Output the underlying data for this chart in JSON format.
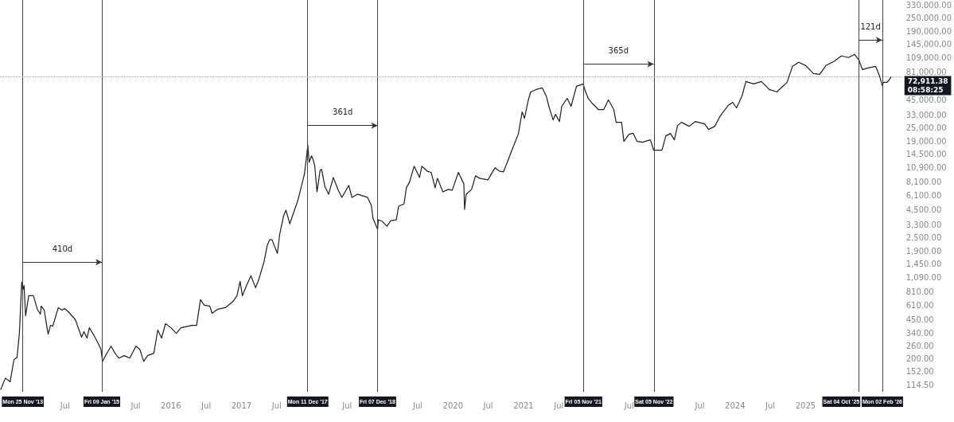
{
  "chart_data": {
    "type": "line",
    "log": "y",
    "marker": "none",
    "line_style": "solid",
    "xlim": [
      2013.576,
      2026.358
    ],
    "xticks": [
      {
        "value": 2014.5,
        "label": "Jul"
      },
      {
        "value": 2015.5,
        "label": "Jul"
      },
      2016,
      {
        "value": 2016.5,
        "label": "Jul"
      },
      2017,
      {
        "value": 2017.5,
        "label": "Jul"
      },
      {
        "value": 2018.5,
        "label": "Jul"
      },
      {
        "value": 2019.5,
        "label": "Jul"
      },
      2020,
      {
        "value": 2020.5,
        "label": "Jul"
      },
      2021,
      {
        "value": 2021.5,
        "label": "Jul"
      },
      {
        "value": 2022.5,
        "label": "Jul"
      },
      {
        "value": 2023.5,
        "label": "Jul"
      },
      2024,
      {
        "value": 2024.5,
        "label": "Jul"
      },
      2025
    ],
    "ylim": [
      100,
      365000
    ],
    "yticks": [
      {
        "value": 330000,
        "label": "330,000.00"
      },
      {
        "value": 250000,
        "label": "250,000.00"
      },
      {
        "value": 190000,
        "label": "190,000.00"
      },
      {
        "value": 145000,
        "label": "145,000.00"
      },
      {
        "value": 109000,
        "label": "109,000.00"
      },
      {
        "value": 81000,
        "label": "81,000.00"
      },
      {
        "value": 45000,
        "label": "45,000.00"
      },
      {
        "value": 33000,
        "label": "33,000.00"
      },
      {
        "value": 25000,
        "label": "25,000.00"
      },
      {
        "value": 19000,
        "label": "19,000.00"
      },
      {
        "value": 14500,
        "label": "14,500.00"
      },
      {
        "value": 10900,
        "label": "10,900.00"
      },
      {
        "value": 8100,
        "label": "8,100.00"
      },
      {
        "value": 6100,
        "label": "6,100.00"
      },
      {
        "value": 4500,
        "label": "4,500.00"
      },
      {
        "value": 3300,
        "label": "3,300.00"
      },
      {
        "value": 2500,
        "label": "2,500.00"
      },
      {
        "value": 1900,
        "label": "1,900.00"
      },
      {
        "value": 1450,
        "label": "1,450.00"
      },
      {
        "value": 1090,
        "label": "1,090.00"
      },
      {
        "value": 810,
        "label": "810.00"
      },
      {
        "value": 610,
        "label": "610.00"
      },
      {
        "value": 450,
        "label": "450.00"
      },
      {
        "value": 340,
        "label": "340.00"
      },
      {
        "value": 260,
        "label": "260.00"
      },
      {
        "value": 200,
        "label": "200.00"
      },
      {
        "value": 152,
        "label": "152.00"
      },
      {
        "value": 114.5,
        "label": "114.50"
      }
    ],
    "series": [
      {
        "color": "#1e1e1e",
        "x": [
          2013.587,
          2013.653,
          2013.719,
          2013.774,
          2013.818,
          2013.851,
          2013.884,
          2013.899,
          2013.917,
          2013.939,
          2013.983,
          2014.05,
          2014.105,
          2014.149,
          2014.16,
          2014.204,
          2014.237,
          2014.259,
          2014.292,
          2014.325,
          2014.402,
          2014.457,
          2014.49,
          2014.545,
          2014.645,
          2014.733,
          2014.766,
          2014.81,
          2014.843,
          2014.898,
          2014.953,
          2015.008,
          2015.03,
          2015.085,
          2015.151,
          2015.207,
          2015.262,
          2015.339,
          2015.416,
          2015.504,
          2015.559,
          2015.614,
          2015.669,
          2015.758,
          2015.813,
          2015.868,
          2015.923,
          2016.0,
          2016.077,
          2016.143,
          2016.298,
          2016.364,
          2016.419,
          2016.474,
          2016.551,
          2016.584,
          2016.661,
          2016.771,
          2016.882,
          2016.937,
          2016.981,
          2017.014,
          2017.069,
          2017.135,
          2017.201,
          2017.245,
          2017.322,
          2017.366,
          2017.399,
          2017.433,
          2017.51,
          2017.543,
          2017.598,
          2017.631,
          2017.686,
          2017.763,
          2017.796,
          2017.84,
          2017.895,
          2017.942,
          2017.961,
          2017.994,
          2018.017,
          2018.039,
          2018.072,
          2018.116,
          2018.138,
          2018.182,
          2018.237,
          2018.303,
          2018.369,
          2018.424,
          2018.523,
          2018.567,
          2018.645,
          2018.788,
          2018.843,
          2018.865,
          2018.931,
          2018.942,
          2018.997,
          2019.063,
          2019.118,
          2019.196,
          2019.229,
          2019.306,
          2019.339,
          2019.383,
          2019.449,
          2019.526,
          2019.559,
          2019.636,
          2019.691,
          2019.747,
          2019.78,
          2019.857,
          2019.934,
          2019.989,
          2020.077,
          2020.154,
          2020.165,
          2020.187,
          2020.264,
          2020.32,
          2020.375,
          2020.496,
          2020.595,
          2020.661,
          2020.716,
          2020.771,
          2020.848,
          2020.926,
          2020.981,
          2021.014,
          2021.069,
          2021.102,
          2021.179,
          2021.267,
          2021.322,
          2021.366,
          2021.421,
          2021.455,
          2021.51,
          2021.543,
          2021.62,
          2021.675,
          2021.752,
          2021.847,
          2021.87,
          2021.917,
          2021.983,
          2022.061,
          2022.138,
          2022.204,
          2022.281,
          2022.314,
          2022.391,
          2022.424,
          2022.496,
          2022.556,
          2022.612,
          2022.689,
          2022.799,
          2022.847,
          2022.964,
          2023.019,
          2023.085,
          2023.14,
          2023.185,
          2023.24,
          2023.35,
          2023.438,
          2023.57,
          2023.625,
          2023.713,
          2023.791,
          2023.901,
          2023.967,
          2024.022,
          2024.099,
          2024.154,
          2024.264,
          2024.375,
          2024.485,
          2024.595,
          2024.628,
          2024.738,
          2024.815,
          2024.904,
          2025.003,
          2025.113,
          2025.201,
          2025.289,
          2025.399,
          2025.51,
          2025.609,
          2025.697,
          2025.756,
          2025.807,
          2025.884,
          2025.994,
          2026.05,
          2026.088,
          2026.105,
          2026.16,
          2026.215
        ],
        "values": [
          105,
          133,
          123,
          196,
          206,
          340,
          992,
          840,
          928,
          491,
          747,
          747,
          562,
          508,
          601,
          552,
          402,
          334,
          402,
          395,
          581,
          552,
          571,
          534,
          452,
          313,
          352,
          308,
          382,
          334,
          288,
          243,
          189,
          220,
          260,
          224,
          202,
          213,
          202,
          260,
          243,
          189,
          213,
          224,
          364,
          308,
          416,
          382,
          340,
          382,
          402,
          402,
          687,
          611,
          601,
          517,
          562,
          581,
          664,
          747,
          1009,
          747,
          913,
          1134,
          883,
          1044,
          1534,
          2143,
          2410,
          2410,
          1813,
          2709,
          3980,
          4476,
          3367,
          4706,
          5378,
          6913,
          9663,
          17360,
          12210,
          13960,
          12840,
          11420,
          6575,
          10330,
          10500,
          7391,
          6254,
          8886,
          6913,
          5850,
          7518,
          5850,
          6254,
          5850,
          4948,
          3785,
          2995,
          3661,
          3540,
          3202,
          3600,
          3661,
          4865,
          5116,
          7150,
          8039,
          11230,
          8886,
          11230,
          10120,
          9887,
          7150,
          8737,
          6575,
          6913,
          6800,
          9887,
          7775,
          4550,
          6254,
          6913,
          9190,
          8737,
          8452,
          10860,
          10120,
          9990,
          12210,
          16510,
          21940,
          35050,
          30650,
          45050,
          53240,
          56000,
          57910,
          48980,
          38110,
          29650,
          33340,
          28670,
          39400,
          46590,
          39400,
          59880,
          62950,
          56000,
          46590,
          41430,
          36850,
          36850,
          45050,
          36850,
          28190,
          28190,
          18870,
          21940,
          22400,
          18870,
          18560,
          19520,
          15700,
          15700,
          21220,
          22310,
          19520,
          26370,
          28190,
          25930,
          28670,
          27270,
          24250,
          25930,
          32240,
          40070,
          42840,
          38110,
          48980,
          66200,
          62950,
          66200,
          56000,
          53240,
          56000,
          65100,
          90970,
          98900,
          92500,
          78250,
          76940,
          92500,
          100600,
          113100,
          109400,
          116900,
          104000,
          85070,
          87990,
          90970,
          74400,
          60900,
          65100,
          65100,
          72911.38
        ]
      }
    ],
    "ref_lines": [
      {
        "axis": "x",
        "value": 2013.899,
        "label": "Mon 25 Nov '13",
        "color": "#444444"
      },
      {
        "axis": "x",
        "value": 2015.022,
        "label": "Fri 09 Jan '15",
        "color": "#444444"
      },
      {
        "axis": "x",
        "value": 2017.942,
        "label": "Mon 11 Dec '17",
        "color": "#444444"
      },
      {
        "axis": "x",
        "value": 2018.931,
        "label": "Fri 07 Dec '18",
        "color": "#444444"
      },
      {
        "axis": "x",
        "value": 2021.847,
        "label": "Fri 05 Nov '21",
        "color": "#444444"
      },
      {
        "axis": "x",
        "value": 2022.847,
        "label": "Sat 05 Nov '22",
        "color": "#444444"
      },
      {
        "axis": "x",
        "value": 2025.756,
        "label": "Sat 04 Oct '25",
        "color": "#444444"
      },
      {
        "axis": "x",
        "value": 2026.088,
        "label": "Mon 02 Feb '26",
        "color": "#444444"
      },
      {
        "axis": "y",
        "value": 72911.38,
        "label": "72,911.38\n08:58:25",
        "color": "#9e9e9e",
        "line_style": "dotted"
      }
    ],
    "annotations": [
      "410d",
      "361d",
      "365d",
      "121d"
    ]
  }
}
